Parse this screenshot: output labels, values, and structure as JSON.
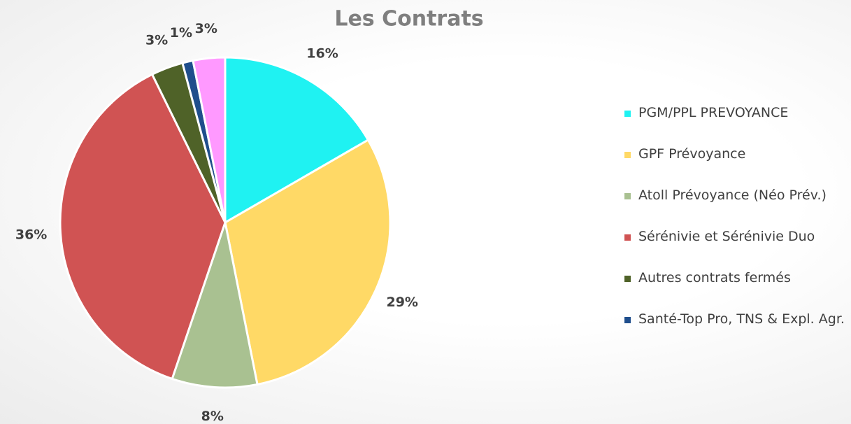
{
  "chart_data": {
    "type": "pie",
    "title": "Les Contrats",
    "categories": [
      "PGM/PPL PREVOYANCE",
      "GPF Prévoyance",
      "Atoll Prévoyance (Néo Prév.)",
      "Sérénivie et Sérénivie Duo",
      "Autres contrats fermés",
      "Santé-Top Pro, TNS & Expl. Agr.",
      null
    ],
    "values": [
      16,
      29,
      8,
      36,
      3,
      1,
      3
    ],
    "value_labels": [
      "16%",
      "29%",
      "8%",
      "36%",
      "3%",
      "1%",
      "3%"
    ],
    "colors": [
      "#1ff2f2",
      "#ffd966",
      "#a9c191",
      "#d05353",
      "#4f6228",
      "#1f4e8c",
      "#ff99ff"
    ],
    "legend": "right"
  }
}
